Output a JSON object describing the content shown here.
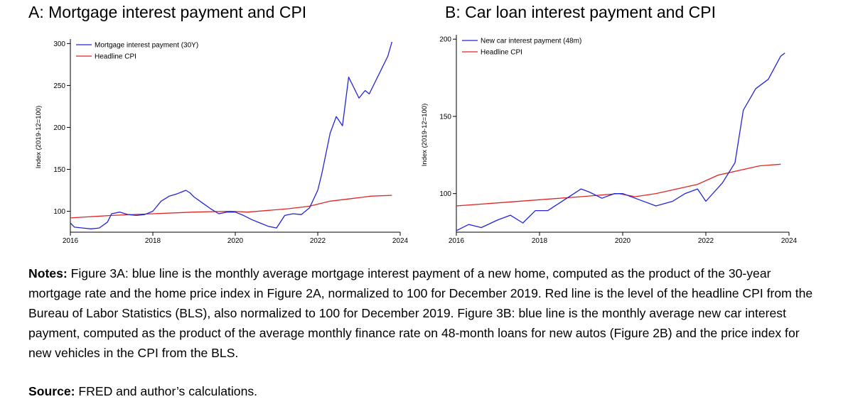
{
  "panels": {
    "a": {
      "title": "A: Mortgage interest payment and CPI"
    },
    "b": {
      "title": "B: Car loan interest payment and CPI"
    }
  },
  "notes": {
    "label": "Notes:",
    "text": " Figure 3A: blue line is the monthly average mortgage interest payment of a new home, computed as the product of the 30-year mortgage rate and the home price index in Figure 2A, normalized to 100 for December 2019. Red line is the level of the headline CPI from the Bureau of Labor Statistics (BLS), also normalized to 100 for December 2019. Figure 3B: blue line is the monthly average new car interest payment, computed as the product of the average monthly finance rate on 48-month loans for new autos (Figure 2B) and the price index for new vehicles in the CPI from the BLS."
  },
  "source": {
    "label": "Source:",
    "text": " FRED and author’s calculations."
  },
  "colors": {
    "blue": "#2424d6",
    "red": "#e02424",
    "axis": "#000000"
  },
  "chart_data": [
    {
      "type": "line",
      "title": "A: Mortgage interest payment and CPI",
      "xlabel": "",
      "ylabel": "Index (2019-12=100)",
      "xlim": [
        2016,
        2024
      ],
      "ylim": [
        75,
        302
      ],
      "xticks": [
        2016,
        2018,
        2020,
        2022,
        2024
      ],
      "yticks": [
        100,
        150,
        200,
        250,
        300
      ],
      "grid": false,
      "legend": "top-left",
      "series": [
        {
          "name": "Mortgage interest payment (30Y)",
          "color": "#2424d6",
          "x": [
            2016.0,
            2016.1,
            2016.3,
            2016.5,
            2016.7,
            2016.9,
            2017.0,
            2017.2,
            2017.4,
            2017.6,
            2017.8,
            2018.0,
            2018.2,
            2018.4,
            2018.6,
            2018.8,
            2018.9,
            2019.0,
            2019.2,
            2019.4,
            2019.6,
            2019.8,
            2020.0,
            2020.2,
            2020.4,
            2020.6,
            2020.8,
            2021.0,
            2021.2,
            2021.4,
            2021.6,
            2021.8,
            2022.0,
            2022.1,
            2022.3,
            2022.45,
            2022.6,
            2022.75,
            2022.85,
            2023.0,
            2023.15,
            2023.25,
            2023.4,
            2023.55,
            2023.7,
            2023.8
          ],
          "y": [
            86,
            81,
            80,
            79,
            80,
            87,
            97,
            99,
            96,
            95,
            96,
            100,
            112,
            118,
            121,
            125,
            122,
            117,
            110,
            103,
            97,
            99,
            99,
            95,
            90,
            86,
            82,
            80,
            95,
            97,
            96,
            104,
            125,
            145,
            193,
            213,
            202,
            260,
            250,
            235,
            244,
            240,
            255,
            270,
            285,
            302
          ]
        },
        {
          "name": "Headline CPI",
          "color": "#e02424",
          "x": [
            2016.0,
            2017.0,
            2018.0,
            2019.0,
            2019.9,
            2020.3,
            2020.8,
            2021.3,
            2021.8,
            2022.3,
            2022.8,
            2023.3,
            2023.8
          ],
          "y": [
            92,
            95,
            97,
            99,
            100,
            99,
            101,
            103,
            106,
            112,
            115,
            118,
            119
          ]
        }
      ]
    },
    {
      "type": "line",
      "title": "B: Car loan interest payment and CPI",
      "xlabel": "",
      "ylabel": "Index (2019-12=100)",
      "xlim": [
        2016,
        2024
      ],
      "ylim": [
        75,
        201
      ],
      "xticks": [
        2016,
        2018,
        2020,
        2022,
        2024
      ],
      "yticks": [
        100,
        150,
        200
      ],
      "grid": false,
      "legend": "top-left",
      "series": [
        {
          "name": "New car interest payment (48m)",
          "color": "#2424d6",
          "x": [
            2016.0,
            2016.3,
            2016.6,
            2017.0,
            2017.3,
            2017.6,
            2017.9,
            2018.2,
            2018.6,
            2019.0,
            2019.2,
            2019.5,
            2019.8,
            2020.0,
            2020.4,
            2020.8,
            2021.2,
            2021.5,
            2021.8,
            2022.0,
            2022.4,
            2022.7,
            2022.9,
            2023.2,
            2023.5,
            2023.8,
            2023.9
          ],
          "y": [
            76,
            80,
            78,
            83,
            86,
            81,
            89,
            89,
            96,
            103,
            101,
            97,
            100,
            100,
            96,
            92,
            95,
            100,
            103,
            95,
            107,
            120,
            154,
            168,
            174,
            189,
            191
          ]
        },
        {
          "name": "Headline CPI",
          "color": "#e02424",
          "x": [
            2016.0,
            2017.0,
            2018.0,
            2019.0,
            2019.9,
            2020.3,
            2020.8,
            2021.3,
            2021.8,
            2022.3,
            2022.8,
            2023.3,
            2023.8
          ],
          "y": [
            92,
            94,
            96,
            98,
            100,
            98,
            100,
            103,
            106,
            112,
            115,
            118,
            119
          ]
        }
      ]
    }
  ]
}
